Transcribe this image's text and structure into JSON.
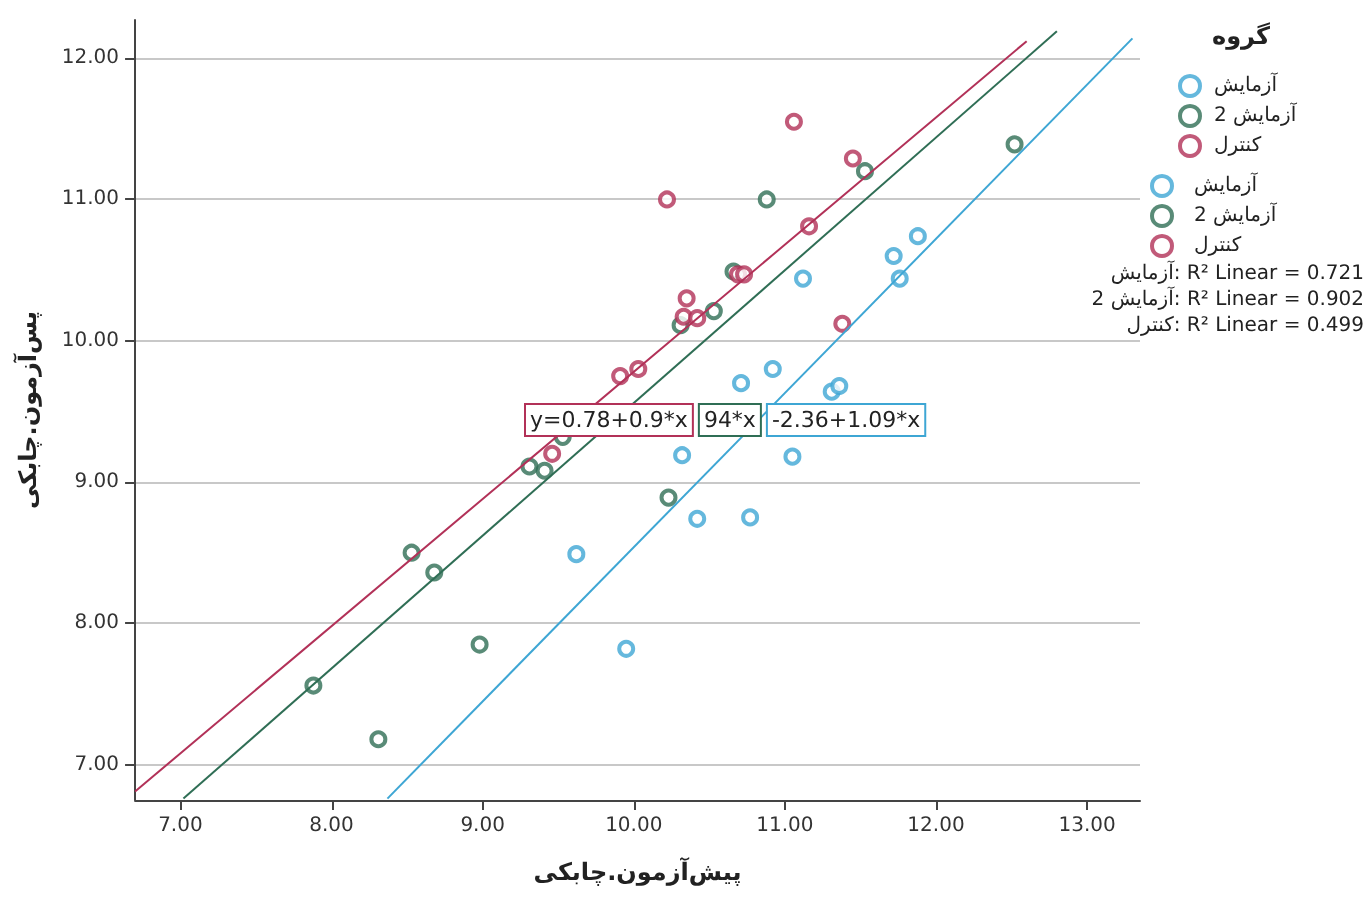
{
  "chart_data": {
    "type": "scatter",
    "xlabel": "پیش‌آزمون.چابکی",
    "ylabel": "پس‌آزمون.چابکی",
    "legend_title": "گروه",
    "xlim": [
      6.7,
      13.35
    ],
    "ylim": [
      6.75,
      12.27
    ],
    "xticks": [
      {
        "value": 7,
        "label": "7.00"
      },
      {
        "value": 8,
        "label": "8.00"
      },
      {
        "value": 9,
        "label": "9.00"
      },
      {
        "value": 10,
        "label": "10.00"
      },
      {
        "value": 11,
        "label": "11.00"
      },
      {
        "value": 12,
        "label": "12.00"
      },
      {
        "value": 13,
        "label": "13.00"
      }
    ],
    "yticks": [
      {
        "value": 7,
        "label": "7.00"
      },
      {
        "value": 8,
        "label": "8.00"
      },
      {
        "value": 9,
        "label": "9.00"
      },
      {
        "value": 10,
        "label": "10.00"
      },
      {
        "value": 11,
        "label": "11.00"
      },
      {
        "value": 12,
        "label": "12.00"
      }
    ],
    "grid": "y",
    "legend": "right",
    "series": [
      {
        "name": "آزمایش",
        "color": "#3ea6d4",
        "marker": "circle",
        "x": [
          11.88,
          11.72,
          11.76,
          11.12,
          10.71,
          10.92,
          11.31,
          11.36,
          9.62,
          9.95,
          10.32,
          11.05,
          10.42,
          10.77
        ],
        "values": [
          10.74,
          10.6,
          10.44,
          10.44,
          9.7,
          9.8,
          9.64,
          9.68,
          8.49,
          7.82,
          9.19,
          9.18,
          8.74,
          8.75
        ]
      },
      {
        "name": "آزمایش 2",
        "color": "#2f6e55",
        "marker": "circle",
        "x": [
          11.53,
          10.88,
          12.52,
          10.66,
          10.53,
          10.31,
          9.53,
          9.31,
          9.41,
          8.53,
          8.68,
          8.98,
          7.88,
          8.31,
          10.23
        ],
        "values": [
          11.2,
          11.0,
          11.39,
          10.49,
          10.21,
          10.11,
          9.32,
          9.11,
          9.08,
          8.5,
          8.36,
          7.85,
          7.56,
          7.18,
          8.89
        ]
      },
      {
        "name": "کنترل",
        "color": "#b23158",
        "marker": "circle",
        "x": [
          11.06,
          10.22,
          11.45,
          11.16,
          10.69,
          10.73,
          10.35,
          10.33,
          10.42,
          11.38,
          9.91,
          10.03,
          9.46
        ],
        "values": [
          11.55,
          11.0,
          11.29,
          10.81,
          10.47,
          10.47,
          10.3,
          10.17,
          10.16,
          10.12,
          9.75,
          9.8,
          9.2
        ]
      },
      {
        "type": "line",
        "name": "آزمایش",
        "color": "#3ea6d4",
        "x": [
          8.37,
          13.3
        ],
        "values": [
          6.76,
          12.14
        ]
      },
      {
        "type": "line",
        "name": "آزمایش 2",
        "color": "#2f6e55",
        "x": [
          7.02,
          12.8
        ],
        "values": [
          6.76,
          12.19
        ]
      },
      {
        "type": "line",
        "name": "کنترل",
        "color": "#b23158",
        "x": [
          6.7,
          12.6
        ],
        "values": [
          6.81,
          12.12
        ]
      }
    ],
    "annotations": [
      "y=0.78+0.9*x",
      "94*x",
      "-2.36+1.09*x",
      "آزمایش: R² Linear = 0.721",
      "آزمایش 2: R² Linear = 0.902",
      "کنترل: R² Linear = 0.499"
    ]
  }
}
